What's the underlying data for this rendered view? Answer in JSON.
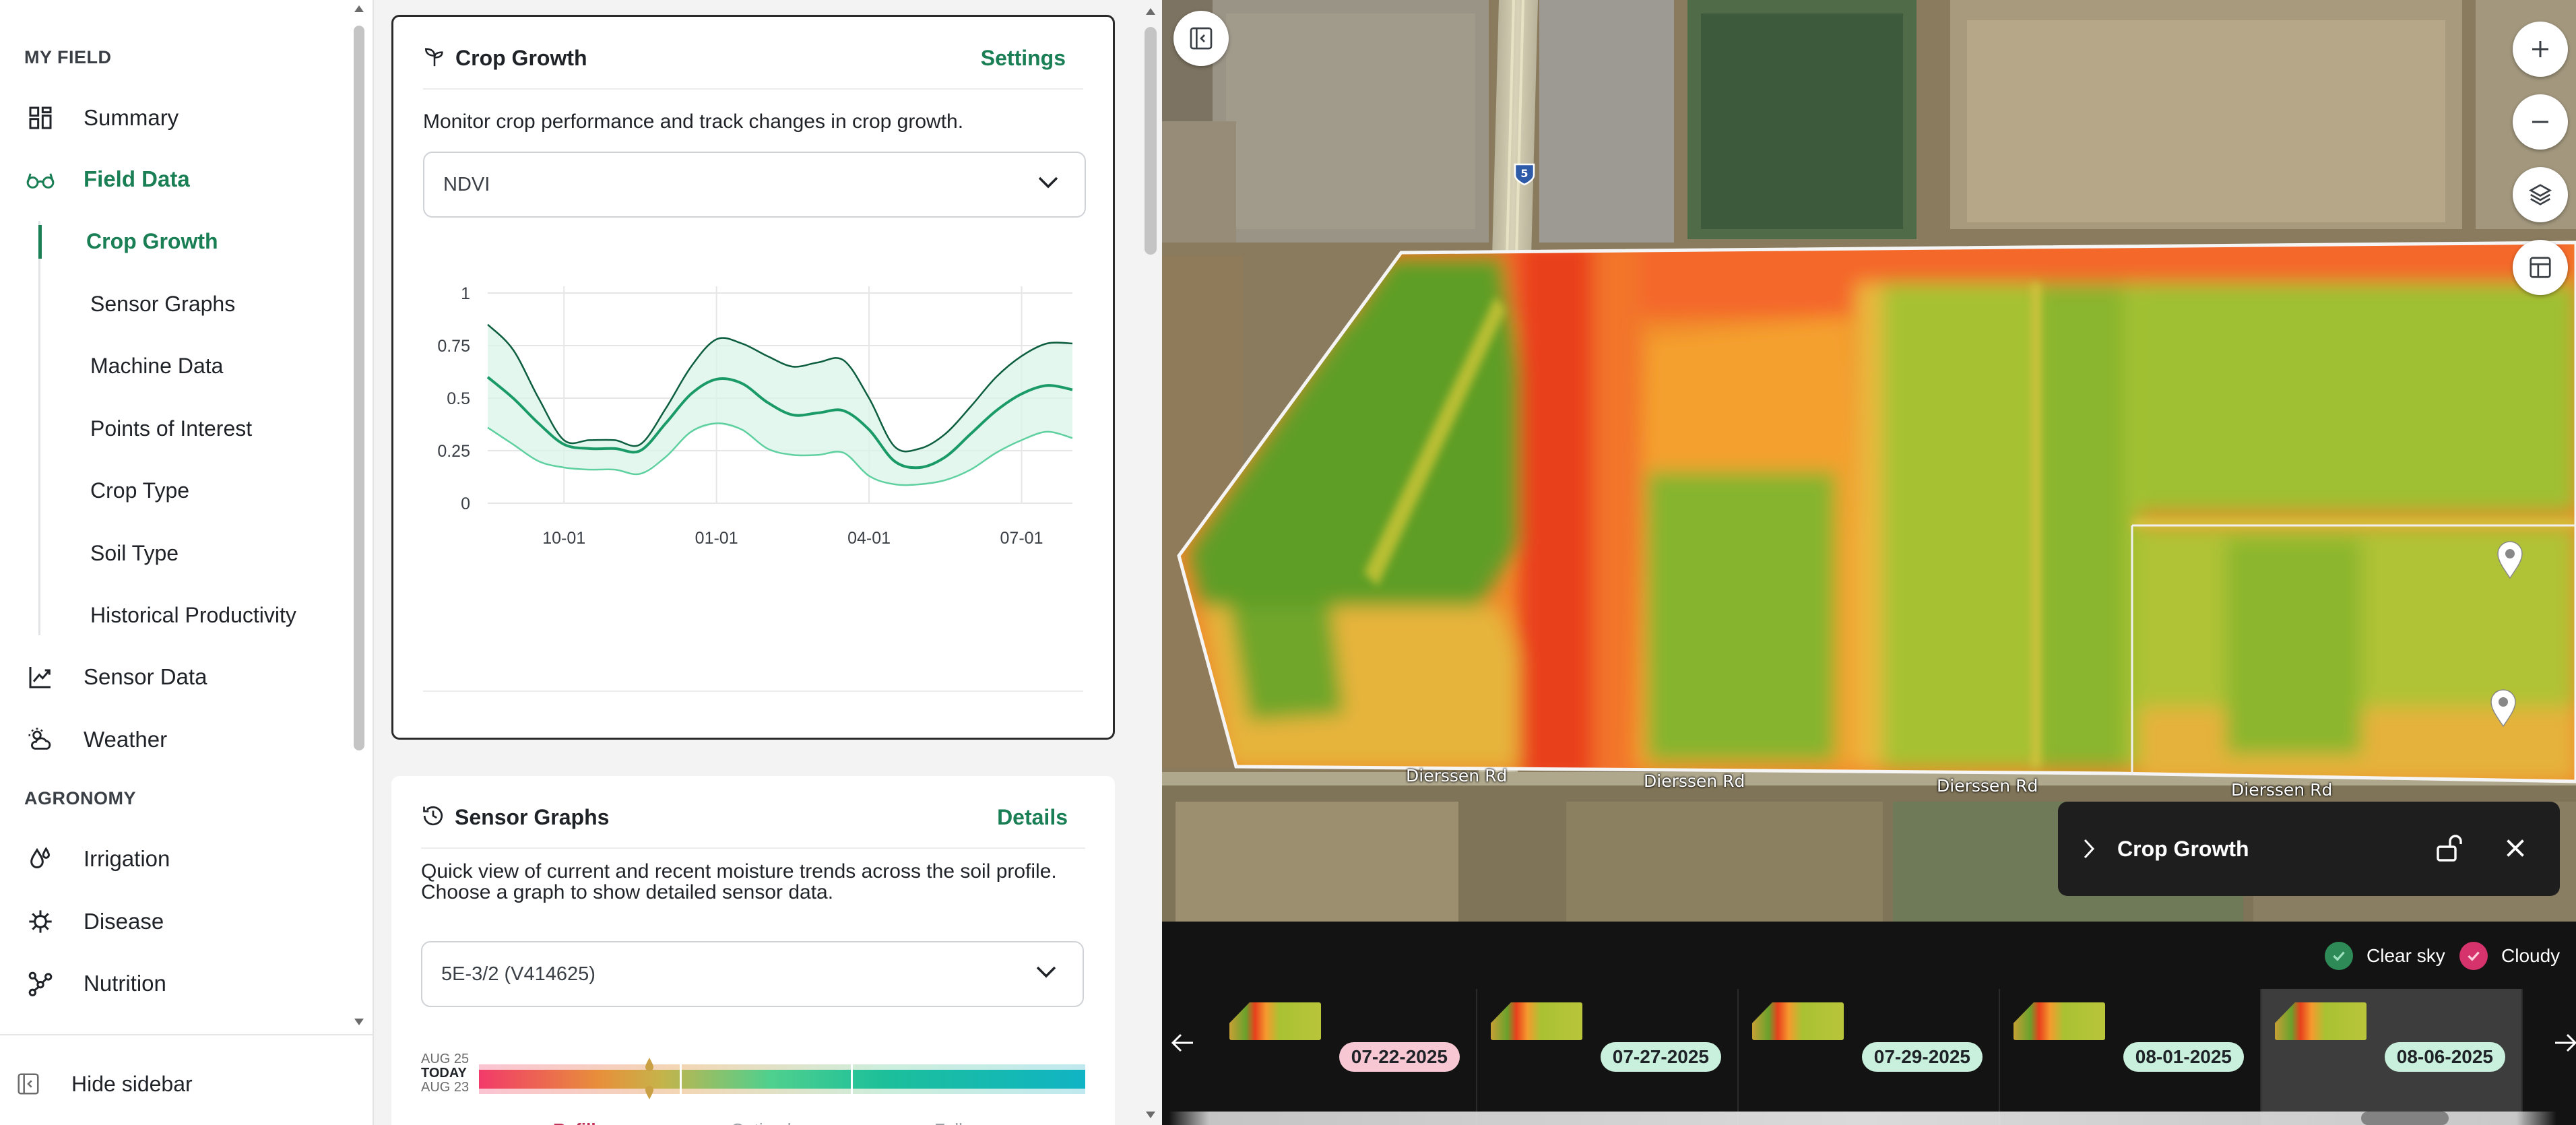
{
  "sidebar": {
    "section_field": "MY FIELD",
    "section_agronomy": "AGRONOMY",
    "summary": "Summary",
    "field_data": "Field Data",
    "sub_items": [
      "Crop Growth",
      "Sensor Graphs",
      "Machine Data",
      "Points of Interest",
      "Crop Type",
      "Soil Type",
      "Historical Productivity"
    ],
    "sensor_data": "Sensor Data",
    "weather": "Weather",
    "irrigation": "Irrigation",
    "disease": "Disease",
    "nutrition": "Nutrition",
    "hide": "Hide sidebar"
  },
  "crop_card": {
    "title": "Crop Growth",
    "link": "Settings",
    "description": "Monitor crop performance and track changes in crop growth.",
    "select_value": "NDVI"
  },
  "chart_data": {
    "type": "line",
    "title": "",
    "xlabel": "",
    "ylabel": "",
    "ylim": [
      0,
      1
    ],
    "y_ticks": [
      "1",
      "0.75",
      "0.5",
      "0.25",
      "0"
    ],
    "x_tick_labels": [
      "10-01",
      "01-01",
      "04-01",
      "07-01"
    ],
    "grid": true,
    "x": [
      "08-15",
      "09-01",
      "09-15",
      "10-01",
      "10-15",
      "11-01",
      "11-15",
      "12-01",
      "12-15",
      "01-01",
      "01-15",
      "02-01",
      "02-15",
      "03-01",
      "03-15",
      "04-01",
      "04-15",
      "05-01",
      "05-15",
      "06-01",
      "06-15",
      "07-01",
      "07-15",
      "08-01"
    ],
    "series": [
      {
        "values": [
          0.85,
          0.73,
          0.5,
          0.3,
          0.3,
          0.3,
          0.28,
          0.45,
          0.65,
          0.78,
          0.76,
          0.7,
          0.65,
          0.67,
          0.68,
          0.5,
          0.27,
          0.26,
          0.33,
          0.46,
          0.6,
          0.7,
          0.76,
          0.76
        ]
      },
      {
        "values": [
          0.6,
          0.5,
          0.38,
          0.28,
          0.26,
          0.26,
          0.25,
          0.38,
          0.52,
          0.59,
          0.57,
          0.48,
          0.42,
          0.43,
          0.44,
          0.35,
          0.2,
          0.17,
          0.22,
          0.33,
          0.44,
          0.52,
          0.56,
          0.54
        ]
      },
      {
        "values": [
          0.36,
          0.28,
          0.2,
          0.17,
          0.16,
          0.16,
          0.14,
          0.22,
          0.34,
          0.38,
          0.35,
          0.26,
          0.23,
          0.23,
          0.24,
          0.13,
          0.09,
          0.09,
          0.11,
          0.16,
          0.24,
          0.3,
          0.34,
          0.31
        ]
      }
    ]
  },
  "sensor_card": {
    "title": "Sensor Graphs",
    "link": "Details",
    "description": "Quick view of current and recent moisture trends across the soil profile. Choose a graph to show detailed sensor data.",
    "select_value": "5E-3/2 (V414625)",
    "bar_labels": [
      "AUG 25",
      "TODAY",
      "AUG 23"
    ],
    "zones": [
      "Refill",
      "Optimal",
      "Full"
    ]
  },
  "map": {
    "road_labels": [
      "Dierssen Rd",
      "Dierssen Rd",
      "Dierssen Rd",
      "Dierssen Rd"
    ],
    "highway_shield": "5",
    "layer_card_title": "Crop Growth"
  },
  "timeline": {
    "legend_clear": "Clear sky",
    "legend_cloudy": "Cloudy",
    "colors": {
      "clear": "#c8f0dc",
      "cloudy": "#f7c8d4"
    },
    "dates": [
      {
        "label": "07-22-2025",
        "cloudy": true
      },
      {
        "label": "07-27-2025",
        "cloudy": false
      },
      {
        "label": "07-29-2025",
        "cloudy": false
      },
      {
        "label": "08-01-2025",
        "cloudy": false
      },
      {
        "label": "08-06-2025",
        "cloudy": false
      }
    ]
  }
}
